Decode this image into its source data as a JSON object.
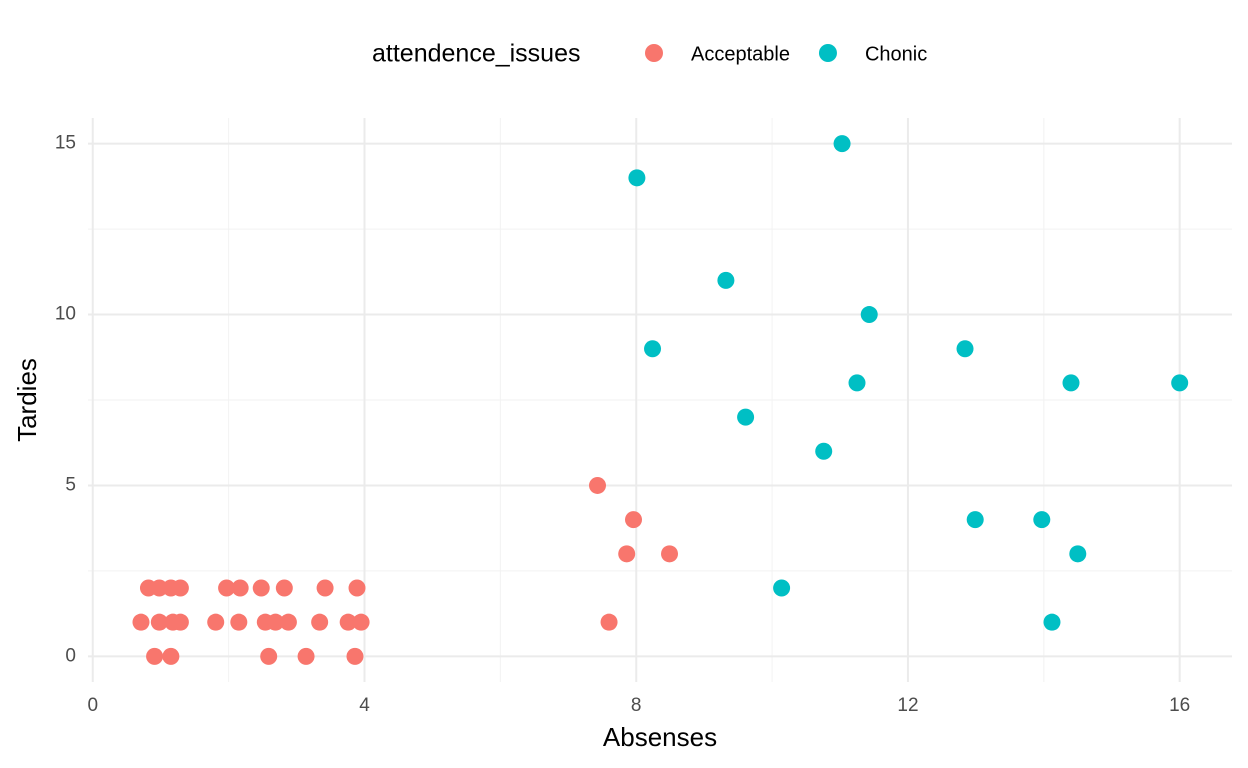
{
  "chart_data": {
    "type": "scatter",
    "x_label": "Absenses",
    "y_label": "Tardies",
    "legend_title": "attendence_issues",
    "legend_position": "top",
    "xlim": [
      -0.07,
      16.77
    ],
    "ylim": [
      -0.75,
      15.75
    ],
    "xticks": [
      0,
      4,
      8,
      12,
      16
    ],
    "yticks": [
      0,
      5,
      10,
      15
    ],
    "x_minor_ticks": [
      2,
      6,
      10,
      14
    ],
    "y_minor_ticks": [
      2.5,
      7.5,
      12.5
    ],
    "grid": true,
    "series": [
      {
        "name": "Acceptable",
        "color": "#F8766D",
        "x": [
          0.82,
          0.98,
          1.15,
          1.29,
          1.97,
          2.17,
          2.48,
          2.82,
          3.42,
          3.89,
          0.71,
          0.98,
          1.18,
          1.29,
          1.81,
          2.15,
          2.54,
          2.69,
          2.88,
          3.34,
          3.76,
          3.95,
          0.91,
          1.15,
          2.59,
          3.14,
          3.86,
          7.43,
          7.96,
          7.86,
          8.49,
          7.6
        ],
        "values": [
          2,
          2,
          2,
          2,
          2,
          2,
          2,
          2,
          2,
          2,
          1,
          1,
          1,
          1,
          1,
          1,
          1,
          1,
          1,
          1,
          1,
          1,
          0,
          0,
          0,
          0,
          0,
          5,
          4,
          3,
          3,
          1
        ]
      },
      {
        "name": "Chonic",
        "color": "#00BFC4",
        "x": [
          11.03,
          8.01,
          9.32,
          11.43,
          8.24,
          12.84,
          11.25,
          14.4,
          16,
          9.61,
          10.76,
          12.99,
          13.97,
          14.5,
          10.14,
          14.12
        ],
        "values": [
          15,
          14,
          11,
          10,
          9,
          9,
          8,
          8,
          8,
          7,
          6,
          4,
          4,
          3,
          2,
          1
        ]
      }
    ]
  }
}
